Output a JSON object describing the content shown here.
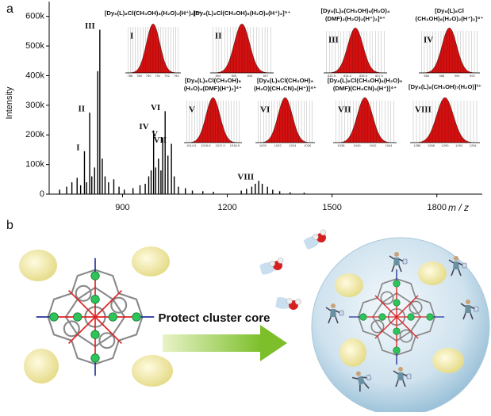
{
  "panel_labels": [
    "a",
    "b"
  ],
  "chart_data": {
    "type": "stem",
    "xlabel": "m / z",
    "ylabel": "Intensity",
    "color": "#000000",
    "xlim": [
      690,
      1930
    ],
    "ylim": [
      0,
      650000
    ],
    "xticks": [
      900,
      1200,
      1500,
      1800
    ],
    "yticks": [
      0,
      {
        "value": 100000,
        "label": "100k"
      },
      {
        "value": 200000,
        "label": "200k"
      },
      {
        "value": 300000,
        "label": "300k"
      },
      {
        "value": 400000,
        "label": "400k"
      },
      {
        "value": 500000,
        "label": "500k"
      },
      {
        "value": 600000,
        "label": "600k"
      }
    ],
    "x": [
      720,
      740,
      755,
      770,
      780,
      791,
      797,
      806,
      812,
      820,
      829,
      835,
      842,
      850,
      860,
      875,
      890,
      905,
      930,
      950,
      965,
      975,
      982,
      989,
      995,
      1003,
      1010,
      1015,
      1022,
      1030,
      1040,
      1048,
      1060,
      1080,
      1100,
      1130,
      1160,
      1240,
      1255,
      1270,
      1280,
      1290,
      1300,
      1315,
      1330,
      1350,
      1380,
      1420
    ],
    "values": [
      15000,
      25000,
      40000,
      55000,
      30000,
      145000,
      40000,
      275000,
      60000,
      90000,
      415000,
      555000,
      120000,
      60000,
      40000,
      50000,
      25000,
      15000,
      20000,
      30000,
      35000,
      60000,
      80000,
      215000,
      90000,
      120000,
      80000,
      190000,
      280000,
      130000,
      170000,
      60000,
      25000,
      20000,
      12000,
      10000,
      8000,
      12000,
      18000,
      25000,
      35000,
      45000,
      35000,
      25000,
      15000,
      10000,
      6000,
      5000
    ],
    "annotations": [
      {
        "text": "I",
        "x": 791
      },
      {
        "text": "II",
        "x": 806
      },
      {
        "text": "III",
        "x": 835
      },
      {
        "text": "IV",
        "x": 989
      },
      {
        "text": "V",
        "x": 1015
      },
      {
        "text": "VI",
        "x": 1022
      },
      {
        "text": "VII",
        "x": 1040
      },
      {
        "text": "VIII",
        "x": 1290
      }
    ]
  },
  "insets": [
    {
      "numeral": "I",
      "title": [
        "[Dy₈(L)₈Cl(CH₃OH)₈(H₂O)₂(H⁺)₂]⁵⁺"
      ],
      "ticks": [
        "788",
        "789",
        "790",
        "791",
        "792",
        "793"
      ]
    },
    {
      "numeral": "II",
      "title": [
        "[Dy₈(L)₈Cl(CH₃OH)₈(H₂O)₆(H⁺)₃]⁵⁺"
      ],
      "ticks": [
        "804",
        "805",
        "806",
        "807"
      ]
    },
    {
      "numeral": "III",
      "title": [
        "[Dy₈(L)₈(CH₃OH)₈(H₂O)₄",
        "(DMF)₂(H₂O)₂(H⁺)₂]⁵⁺"
      ],
      "ticks": [
        "832.5",
        "834.0",
        "835.5",
        "837.0"
      ]
    },
    {
      "numeral": "IV",
      "title": [
        "[Dy₈(L)₈Cl",
        "(CH₃OH)₈(H₂O)₂(H⁺)₂]⁴⁺"
      ],
      "ticks": [
        "986",
        "988",
        "990",
        "992"
      ]
    },
    {
      "numeral": "V",
      "title": [
        "[Dy₈(L)₈Cl(CH₃OH)₈",
        "(H₂O)₄(DMF)(H⁺)₂]⁴⁺"
      ],
      "ticks": [
        "1014.0",
        "1015.5",
        "1017.0",
        "1018.5"
      ]
    },
    {
      "numeral": "VI",
      "title": [
        "[Dy₈(L)₈Cl(CH₃OH)₉",
        "(H₂O)(CH₃CN)₃(H⁺)]⁴⁺"
      ],
      "ticks": [
        "1020",
        "1022",
        "1024",
        "1026"
      ]
    },
    {
      "numeral": "VII",
      "title": [
        "[Dy₈(L)₈Cl(CH₃OH)₈(H₂O)₅",
        "(DMF)(CH₃CN)₂(H⁺)]⁴⁺"
      ],
      "ticks": [
        "1038",
        "1040",
        "1042",
        "1044"
      ]
    },
    {
      "numeral": "VIII",
      "title": [
        "[Dy₈(L)₈(CH₃OH)₇(H₂O)]³⁺"
      ],
      "ticks": [
        "1286",
        "1288",
        "1290",
        "1292",
        "1294"
      ]
    }
  ],
  "diagram": {
    "arrow_label": "Protect cluster core"
  }
}
